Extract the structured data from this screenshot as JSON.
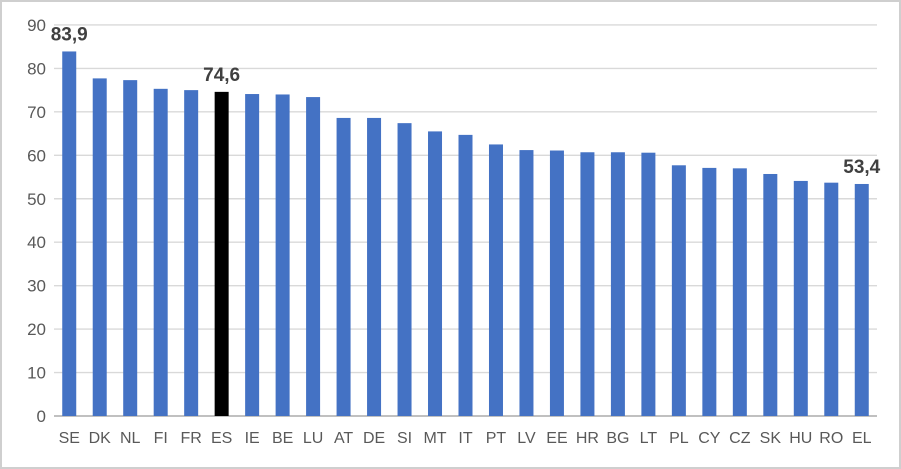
{
  "frame": {
    "background": "#ffffff",
    "border_color": "#cfcfcf"
  },
  "chart_data": {
    "type": "bar",
    "title": "",
    "xlabel": "",
    "ylabel": "",
    "categories": [
      "SE",
      "DK",
      "NL",
      "FI",
      "FR",
      "ES",
      "IE",
      "BE",
      "LU",
      "AT",
      "DE",
      "SI",
      "MT",
      "IT",
      "PT",
      "LV",
      "EE",
      "HR",
      "BG",
      "LT",
      "PL",
      "CY",
      "CZ",
      "SK",
      "HU",
      "RO",
      "EL"
    ],
    "values": [
      83.9,
      77.7,
      77.3,
      75.3,
      75.0,
      74.6,
      74.1,
      74.0,
      73.4,
      68.6,
      68.6,
      67.4,
      65.5,
      64.7,
      62.5,
      61.2,
      61.1,
      60.7,
      60.7,
      60.6,
      57.7,
      57.1,
      57.0,
      55.7,
      54.1,
      53.7,
      53.4
    ],
    "data_labels": [
      {
        "category": "SE",
        "text": "83,9"
      },
      {
        "category": "ES",
        "text": "74,6"
      },
      {
        "category": "EL",
        "text": "53,4"
      }
    ],
    "highlighted_category": "ES",
    "y_ticks": [
      0,
      10,
      20,
      30,
      40,
      50,
      60,
      70,
      80,
      90
    ],
    "ylim": [
      0,
      90
    ],
    "grid": true,
    "legend": "none",
    "bar_color": "#4472c4",
    "highlight_color": "#000000",
    "gridline_color": "#d9d9d9",
    "axis_line_color": "#c0c0c0",
    "tick_label_color": "#595959",
    "data_label_color": "#404040"
  }
}
